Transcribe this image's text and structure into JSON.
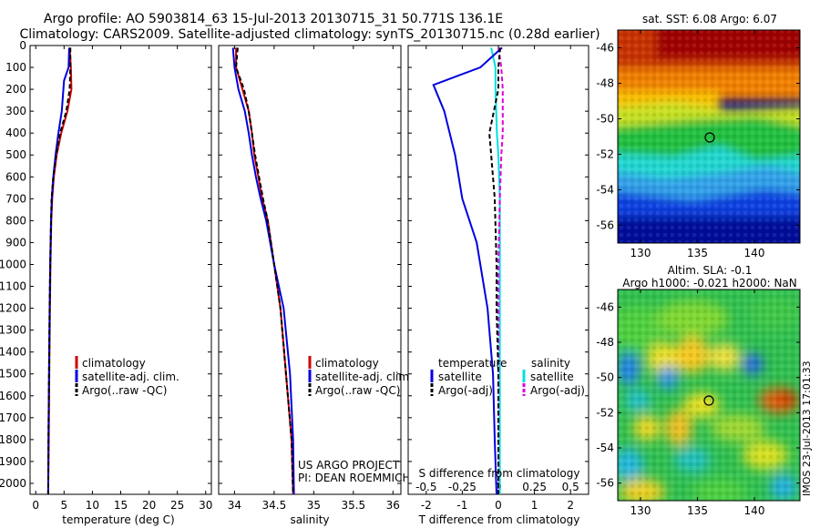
{
  "header": {
    "title_line1": "Argo profile: AO 5903814_63 15-Jul-2013 20130715_31 50.771S 136.1E",
    "title_line2": "Climatology: CARS2009. Satellite-adjusted climatology: synTS_20130715.nc (0.28d earlier)"
  },
  "colors": {
    "climatology": "#d00000",
    "satellite": "#0000e0",
    "argo": "#000000",
    "sal_satellite": "#00e0e0",
    "sal_argo": "#e000e0"
  },
  "depth_ticks": [
    "0",
    "100",
    "200",
    "300",
    "400",
    "500",
    "600",
    "700",
    "800",
    "900",
    "1000",
    "1100",
    "1200",
    "1300",
    "1400",
    "1500",
    "1600",
    "1700",
    "1800",
    "1900",
    "2000"
  ],
  "panels": {
    "temperature": {
      "xlabel": "temperature (deg C)",
      "xticks": [
        "0",
        "5",
        "10",
        "15",
        "20",
        "25",
        "30"
      ],
      "legend": [
        "climatology",
        "satellite-adj. clim.",
        "Argo(..raw -QC)"
      ]
    },
    "salinity": {
      "xlabel": "salinity",
      "xticks": [
        "34",
        "34.5",
        "35",
        "35.5",
        "36"
      ],
      "legend": [
        "climatology",
        "satellite-adj. clim.",
        "Argo(..raw -QC)"
      ],
      "credit1": "US ARGO PROJECT",
      "credit2": "PI: DEAN ROEMMICH"
    },
    "difference": {
      "xlabel": "T difference from climatology",
      "top_label": "S difference from climatology",
      "top_ticks": [
        "-0.5",
        "-0.25",
        "0",
        "0.25",
        "0.5"
      ],
      "xticks": [
        "-2",
        "-1",
        "0",
        "1",
        "2"
      ],
      "legend_temp_title": "temperature",
      "legend_sal_title": "salinity",
      "legend_temp": [
        "satellite",
        "Argo(-adj)"
      ],
      "legend_sal": [
        "satellite",
        "Argo(-adj)"
      ]
    }
  },
  "maps": {
    "sst": {
      "title": "sat. SST: 6.08  Argo: 6.07",
      "yticks": [
        "-46",
        "-48",
        "-50",
        "-52",
        "-54",
        "-56"
      ],
      "xticks": [
        "130",
        "135",
        "140"
      ]
    },
    "sla": {
      "title1": "Altim. SLA: -0.1",
      "title2": "Argo h1000: -0.021  h2000: NaN",
      "yticks": [
        "-46",
        "-48",
        "-50",
        "-52",
        "-54",
        "-56"
      ],
      "xticks": [
        "130",
        "135",
        "140"
      ],
      "stamp": "IMOS 23-Jul-2013 17:01:33"
    }
  },
  "chart_data": [
    {
      "type": "line",
      "panel": "temperature",
      "xlabel": "temperature (deg C)",
      "ylabel": "",
      "xlim": [
        -1,
        31
      ],
      "ylim": [
        2050,
        0
      ],
      "series": [
        {
          "name": "climatology",
          "x": [
            6.0,
            6.2,
            6.3,
            5.6,
            4.5,
            3.7,
            3.2,
            2.9,
            2.75,
            2.6,
            2.5,
            2.4,
            2.3,
            2.2
          ],
          "y": [
            10,
            100,
            200,
            300,
            400,
            500,
            600,
            700,
            800,
            1000,
            1200,
            1500,
            1800,
            2050
          ]
        },
        {
          "name": "satellite-adj. clim.",
          "x": [
            5.9,
            5.8,
            5.0,
            4.6,
            4.0,
            3.5,
            3.1,
            2.85,
            2.7,
            2.55,
            2.45,
            2.35,
            2.25,
            2.2
          ],
          "y": [
            10,
            100,
            160,
            300,
            400,
            500,
            600,
            700,
            800,
            1000,
            1200,
            1500,
            1800,
            2050
          ]
        },
        {
          "name": "Argo(..raw -QC)",
          "x": [
            6.1,
            6.1,
            6.0,
            5.4,
            4.3,
            3.6,
            3.1,
            2.8,
            2.7,
            2.55,
            2.45,
            2.35,
            2.25,
            2.2
          ],
          "y": [
            10,
            100,
            200,
            300,
            400,
            500,
            600,
            700,
            800,
            1000,
            1200,
            1500,
            1800,
            2050
          ]
        }
      ]
    },
    {
      "type": "line",
      "panel": "salinity",
      "xlabel": "salinity",
      "ylabel": "",
      "xlim": [
        33.8,
        36.1
      ],
      "ylim": [
        2050,
        0
      ],
      "series": [
        {
          "name": "climatology",
          "x": [
            34.02,
            34.02,
            34.1,
            34.18,
            34.22,
            34.25,
            34.3,
            34.35,
            34.42,
            34.5,
            34.58,
            34.65,
            34.72,
            34.74
          ],
          "y": [
            10,
            100,
            200,
            300,
            400,
            500,
            600,
            700,
            800,
            1000,
            1200,
            1500,
            1800,
            2050
          ]
        },
        {
          "name": "satellite-adj. clim.",
          "x": [
            33.98,
            34.0,
            34.05,
            34.13,
            34.18,
            34.22,
            34.27,
            34.33,
            34.4,
            34.5,
            34.62,
            34.7,
            34.74,
            34.75
          ],
          "y": [
            10,
            100,
            200,
            300,
            400,
            500,
            600,
            700,
            800,
            1000,
            1200,
            1500,
            1800,
            2050
          ]
        },
        {
          "name": "Argo(..raw -QC)",
          "x": [
            34.04,
            34.02,
            34.12,
            34.18,
            34.22,
            34.26,
            34.31,
            34.36,
            34.42,
            34.5,
            34.58,
            34.65,
            34.72,
            34.74
          ],
          "y": [
            10,
            100,
            200,
            300,
            400,
            500,
            600,
            700,
            800,
            1000,
            1200,
            1500,
            1800,
            2050
          ]
        }
      ]
    },
    {
      "type": "line",
      "panel": "difference",
      "xlabel": "T difference from climatology",
      "ylabel": "",
      "xlim": [
        -2.5,
        2.5
      ],
      "ylim": [
        2050,
        0
      ],
      "series": [
        {
          "name": "satellite",
          "x": [
            0.1,
            -0.5,
            -1.8,
            -1.5,
            -1.2,
            -1.0,
            -0.6,
            -0.3,
            -0.15,
            -0.1,
            -0.05
          ],
          "y": [
            10,
            100,
            180,
            300,
            500,
            700,
            900,
            1200,
            1500,
            1800,
            2050
          ]
        },
        {
          "name": "Argo(-adj)",
          "x": [
            0.05,
            0.0,
            0.0,
            -0.25,
            -0.2,
            -0.1,
            -0.05,
            -0.05,
            0.0,
            0.0,
            0.0
          ],
          "y": [
            10,
            100,
            200,
            400,
            500,
            700,
            1000,
            1200,
            1500,
            1800,
            2050
          ]
        }
      ]
    },
    {
      "type": "line",
      "panel": "difference",
      "xlabel": "S difference from climatology",
      "ylabel": "",
      "xlim": [
        -0.625,
        0.625
      ],
      "ylim": [
        2050,
        0
      ],
      "series": [
        {
          "name": "satellite",
          "x": [
            -0.05,
            -0.02,
            -0.02,
            -0.01,
            0.0,
            0.01,
            0.01,
            0.01,
            0.01,
            0.01,
            0.01
          ],
          "y": [
            10,
            100,
            200,
            400,
            500,
            700,
            1000,
            1200,
            1500,
            1800,
            2050
          ]
        },
        {
          "name": "Argo(-adj)",
          "x": [
            0.0,
            0.02,
            0.03,
            0.03,
            0.02,
            0.01,
            0.0,
            0.0,
            0.0,
            0.0,
            0.0
          ],
          "y": [
            10,
            100,
            200,
            400,
            500,
            700,
            1000,
            1200,
            1500,
            1800,
            2050
          ]
        }
      ]
    },
    {
      "type": "heatmap",
      "panel": "sst",
      "title": "sat. SST: 6.08  Argo: 6.07",
      "xlim": [
        128,
        144
      ],
      "ylim": [
        -57,
        -45
      ],
      "marker": {
        "lon": 136.1,
        "lat": -50.771
      }
    },
    {
      "type": "heatmap",
      "panel": "sla",
      "title": "Altim. SLA: -0.1",
      "xlim": [
        128,
        144
      ],
      "ylim": [
        -57,
        -45
      ],
      "marker": {
        "lon": 136.1,
        "lat": -50.771
      }
    }
  ]
}
